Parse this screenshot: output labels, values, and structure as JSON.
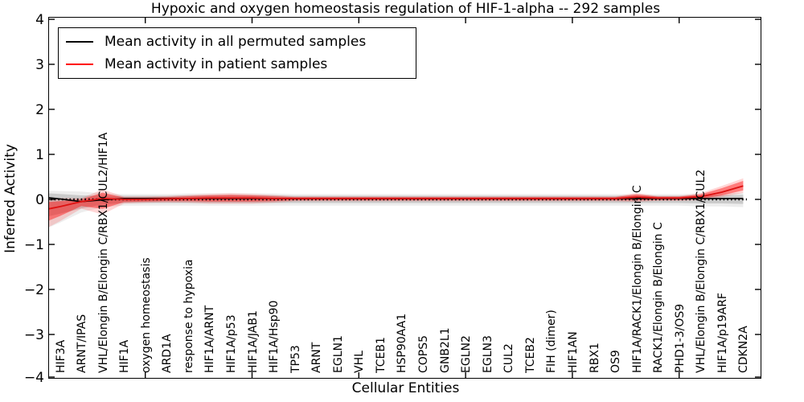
{
  "figure": {
    "title": "Hypoxic and oxygen homeostasis regulation of HIF-1-alpha -- 292 samples",
    "xlabel": "Cellular Entities",
    "ylabel": "Inferred Activity"
  },
  "legend": {
    "items": [
      {
        "label": "Mean activity in all permuted samples",
        "color": "#000000"
      },
      {
        "label": "Mean activity in patient samples",
        "color": "#ff0000"
      }
    ]
  },
  "chart_data": {
    "type": "line",
    "title": "Hypoxic and oxygen homeostasis regulation of HIF-1-alpha -- 292 samples",
    "xlabel": "Cellular Entities",
    "ylabel": "Inferred Activity",
    "ylim": [
      -4,
      4
    ],
    "grid": false,
    "legend_position": "upper left",
    "yticks": [
      4,
      3,
      2,
      1,
      0,
      -1,
      -2,
      -3,
      -4
    ],
    "ytick_labels": [
      "4",
      "3",
      "2",
      "1",
      "0",
      "−1",
      "−2",
      "−3",
      "−4"
    ],
    "xtick_indices": [
      4,
      9,
      14,
      19,
      24,
      29
    ],
    "zero_reference_line": 0,
    "categories": [
      "HIF3A",
      "ARNT/IPAS",
      "VHL/Elongin B/Elongin C/RBX1/CUL2/HIF1A",
      "HIF1A",
      "oxygen homeostasis",
      "ARD1A",
      "response to hypoxia",
      "HIF1A/ARNT",
      "HIF1A/p53",
      "HIF1A/JAB1",
      "HIF1A/Hsp90",
      "TP53",
      "ARNT",
      "EGLN1",
      "VHL",
      "TCEB1",
      "HSP90AA1",
      "COPS5",
      "GNB2L1",
      "EGLN2",
      "EGLN3",
      "CUL2",
      "TCEB2",
      "FIH (dimer)",
      "HIF1AN",
      "RBX1",
      "OS9",
      "HIF1A/RACK1/Elongin B/Elongin C",
      "RACK1/Elongin B/Elongin C",
      "PHD1-3/OS9",
      "VHL/Elongin B/Elongin C/RBX1/CUL2",
      "HIF1A/p19ARF",
      "CDKN2A"
    ],
    "series": [
      {
        "name": "Mean activity in all permuted samples",
        "color": "#000000",
        "band_fill": "rgba(0,0,0,0.14)",
        "band_fill_outer": "rgba(0,0,0,0.07)",
        "values": [
          0.01,
          -0.05,
          -0.01,
          0.02,
          0.02,
          0.02,
          0.02,
          0.02,
          0.02,
          0.02,
          0.02,
          0.02,
          0.02,
          0.02,
          0.02,
          0.02,
          0.02,
          0.02,
          0.02,
          0.02,
          0.02,
          0.02,
          0.02,
          0.02,
          0.02,
          0.02,
          0.02,
          0.02,
          0.02,
          0.02,
          0.02,
          0.02,
          0.02
        ],
        "band_upper": [
          0.12,
          0.09,
          0.08,
          0.08,
          0.08,
          0.08,
          0.09,
          0.09,
          0.09,
          0.09,
          0.09,
          0.08,
          0.08,
          0.08,
          0.08,
          0.08,
          0.08,
          0.08,
          0.08,
          0.08,
          0.08,
          0.08,
          0.08,
          0.08,
          0.08,
          0.08,
          0.08,
          0.08,
          0.08,
          0.08,
          0.09,
          0.09,
          0.1
        ],
        "band_lower": [
          -0.32,
          -0.2,
          -0.11,
          -0.08,
          -0.08,
          -0.08,
          -0.08,
          -0.08,
          -0.08,
          -0.08,
          -0.08,
          -0.08,
          -0.08,
          -0.08,
          -0.08,
          -0.08,
          -0.08,
          -0.08,
          -0.08,
          -0.08,
          -0.08,
          -0.08,
          -0.08,
          -0.08,
          -0.08,
          -0.08,
          -0.08,
          -0.08,
          -0.08,
          -0.08,
          -0.09,
          -0.09,
          -0.1
        ]
      },
      {
        "name": "Mean activity in patient samples",
        "color": "#dd1111",
        "band_fill": "rgba(255,0,0,0.42)",
        "band_fill_outer": "rgba(255,0,0,0.16)",
        "values": [
          -0.16,
          -0.05,
          0.02,
          0.0,
          0.0,
          0.01,
          0.02,
          0.03,
          0.03,
          0.03,
          0.02,
          0.02,
          0.02,
          0.02,
          0.02,
          0.02,
          0.02,
          0.02,
          0.02,
          0.02,
          0.02,
          0.02,
          0.02,
          0.02,
          0.02,
          0.02,
          0.02,
          0.05,
          0.03,
          0.03,
          0.06,
          0.16,
          0.3
        ],
        "band_upper": [
          -0.04,
          0.0,
          0.15,
          0.04,
          0.04,
          0.05,
          0.07,
          0.09,
          0.1,
          0.09,
          0.07,
          0.05,
          0.05,
          0.05,
          0.05,
          0.05,
          0.05,
          0.05,
          0.05,
          0.05,
          0.05,
          0.05,
          0.05,
          0.05,
          0.05,
          0.05,
          0.05,
          0.11,
          0.06,
          0.06,
          0.11,
          0.25,
          0.41
        ],
        "band_lower": [
          -0.37,
          -0.15,
          -0.21,
          -0.06,
          -0.05,
          -0.04,
          -0.04,
          -0.05,
          -0.05,
          -0.05,
          -0.04,
          -0.02,
          -0.02,
          -0.02,
          -0.02,
          -0.02,
          -0.02,
          -0.02,
          -0.02,
          -0.02,
          -0.02,
          -0.02,
          -0.02,
          -0.02,
          -0.02,
          -0.02,
          -0.02,
          -0.02,
          -0.01,
          -0.01,
          0.01,
          0.09,
          0.2
        ]
      }
    ]
  }
}
